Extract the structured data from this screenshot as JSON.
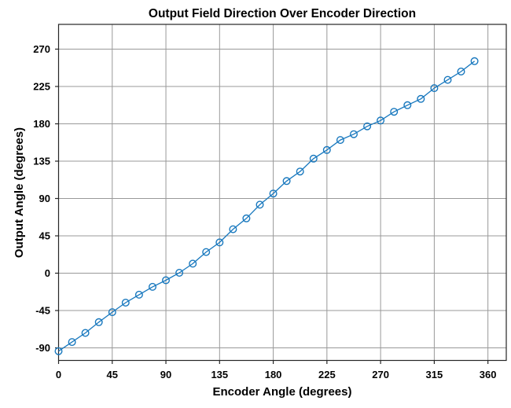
{
  "chart_data": {
    "type": "line",
    "title": "Output Field Direction Over Encoder Direction",
    "xlabel": "Encoder Angle (degrees)",
    "ylabel": "Output Angle (degrees)",
    "xlim": [
      0,
      375
    ],
    "ylim": [
      -105,
      300
    ],
    "grid": true,
    "legend": "none",
    "x_ticks": [
      0,
      45,
      90,
      135,
      180,
      225,
      270,
      315,
      360
    ],
    "y_ticks": [
      270,
      225,
      180,
      135,
      90,
      45,
      0,
      -45,
      -90
    ],
    "x_tick_labels": [
      "0",
      "45",
      "90",
      "135",
      "180",
      "225",
      "270",
      "315",
      "360"
    ],
    "y_tick_labels": [
      "270",
      "225",
      "180",
      "135",
      "90",
      "45",
      "0",
      "-45",
      "-90"
    ],
    "marker": "open-circle",
    "line_color": "#1878be",
    "grid_color": "#999999",
    "axis_color": "#262626",
    "text_color": "#000000",
    "series": [
      {
        "name": "output-angle-vs-encoder-angle",
        "x": [
          0,
          11.25,
          22.5,
          33.75,
          45,
          56.25,
          67.5,
          78.75,
          90,
          101.25,
          112.5,
          123.75,
          135,
          146.25,
          157.5,
          168.75,
          180,
          191.25,
          202.5,
          213.75,
          225,
          236.25,
          247.5,
          258.75,
          270,
          281.25,
          292.5,
          303.75,
          315,
          326.25,
          337.5,
          348.75
        ],
        "y": [
          -94,
          -83,
          -72,
          -59,
          -47,
          -35.5,
          -26,
          -16.5,
          -8.5,
          0.5,
          11.5,
          25.5,
          37,
          53,
          66,
          82.5,
          96,
          111,
          122.5,
          138,
          148.5,
          160.5,
          167.5,
          177,
          184,
          194.5,
          202.5,
          210,
          223,
          233,
          243,
          255.5
        ]
      }
    ]
  }
}
